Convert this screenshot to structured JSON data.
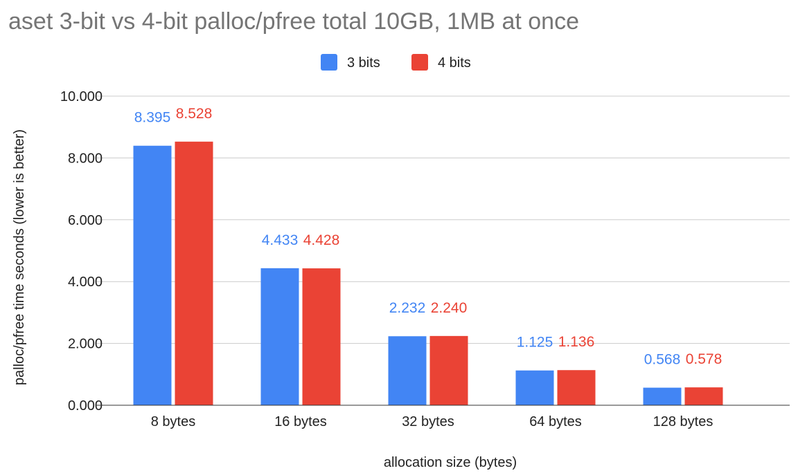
{
  "chart_data": {
    "type": "bar",
    "title": "aset 3-bit vs 4-bit palloc/pfree total 10GB, 1MB at once",
    "xlabel": "allocation size (bytes)",
    "ylabel": "palloc/pfree time seconds (lower is better)",
    "categories": [
      "8 bytes",
      "16 bytes",
      "32 bytes",
      "64 bytes",
      "128 bytes"
    ],
    "series": [
      {
        "name": "3 bits",
        "color": "#4285f4",
        "values": [
          8.395,
          4.433,
          2.232,
          1.125,
          0.568
        ],
        "labels": [
          "8.395",
          "4.433",
          "2.232",
          "1.125",
          "0.568"
        ]
      },
      {
        "name": "4 bits",
        "color": "#ea4335",
        "values": [
          8.528,
          4.428,
          2.24,
          1.136,
          0.578
        ],
        "labels": [
          "8.528",
          "4.428",
          "2.240",
          "1.136",
          "0.578"
        ]
      }
    ],
    "ylim": [
      0,
      10
    ],
    "yticks": [
      "0.000",
      "2.000",
      "4.000",
      "6.000",
      "8.000",
      "10.000"
    ],
    "ytick_values": [
      0,
      2,
      4,
      6,
      8,
      10
    ],
    "grid": true,
    "legend": "top-center"
  }
}
